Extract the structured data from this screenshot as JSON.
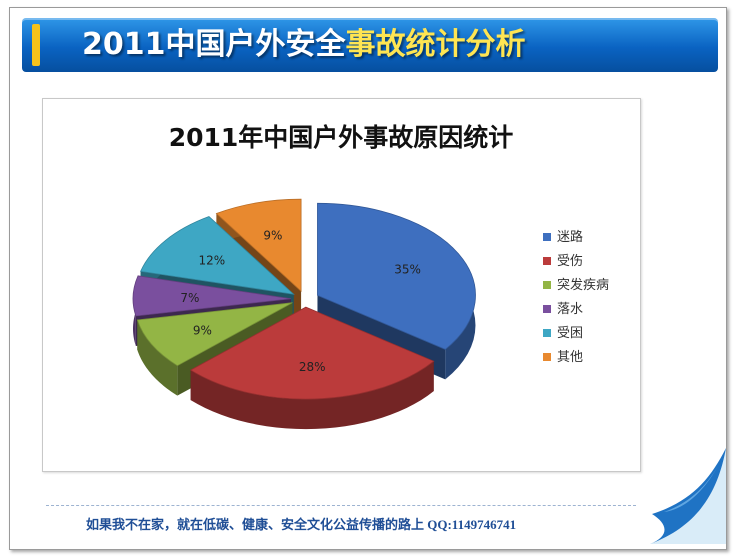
{
  "slide": {
    "title_main": "2011中国户外安全",
    "title_highlight": "事故统计分析",
    "footer": "如果我不在家，就在低碳、健康、安全文化公益传播的路上  QQ:1149746741",
    "colors": {
      "title_bar": "#0a63c2",
      "highlight": "#ffe552",
      "footer": "#1f4e96"
    }
  },
  "chart_data": {
    "type": "pie",
    "style": "3d-exploded",
    "title": "2011年中国户外事故原因统计",
    "legend_position": "right",
    "categories": [
      "迷路",
      "受伤",
      "突发疾病",
      "落水",
      "受困",
      "其他"
    ],
    "values": [
      35,
      28,
      9,
      7,
      12,
      9
    ],
    "labels": [
      "35%",
      "28%",
      "9%",
      "7%",
      "12%",
      "9%"
    ],
    "colors": [
      "#3e6fbf",
      "#bb3b3b",
      "#93b545",
      "#7a4f9e",
      "#3ea7c4",
      "#e8892f"
    ]
  }
}
